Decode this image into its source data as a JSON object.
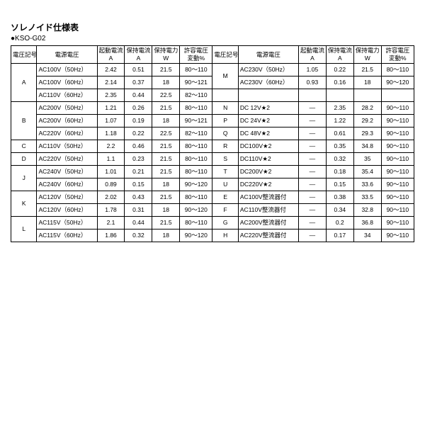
{
  "title": "ソレノイド仕様表",
  "subtitle": "●KSO-G02",
  "headers": {
    "code": "電圧記号",
    "voltage": "電源電圧",
    "start": "起動電流\nA",
    "hold": "保持電流\nA",
    "power": "保持電力\nW",
    "tol": "許容電圧\n変動%"
  },
  "left": [
    {
      "code": "A",
      "span": 3,
      "rows": [
        [
          "AC100V（50Hz）",
          "2.42",
          "0.51",
          "21.5",
          "80～110"
        ],
        [
          "AC100V（60Hz）",
          "2.14",
          "0.37",
          "18",
          "90～121"
        ],
        [
          "AC110V（60Hz）",
          "2.35",
          "0.44",
          "22.5",
          "82～110"
        ]
      ]
    },
    {
      "code": "B",
      "span": 3,
      "rows": [
        [
          "AC200V（50Hz）",
          "1.21",
          "0.26",
          "21.5",
          "80～110"
        ],
        [
          "AC200V（60Hz）",
          "1.07",
          "0.19",
          "18",
          "90～121"
        ],
        [
          "AC220V（60Hz）",
          "1.18",
          "0.22",
          "22.5",
          "82～110"
        ]
      ]
    },
    {
      "code": "C",
      "span": 1,
      "rows": [
        [
          "AC110V（50Hz）",
          "2.2",
          "0.46",
          "21.5",
          "80～110"
        ]
      ]
    },
    {
      "code": "D",
      "span": 1,
      "rows": [
        [
          "AC220V（50Hz）",
          "1.1",
          "0.23",
          "21.5",
          "80～110"
        ]
      ]
    },
    {
      "code": "J",
      "span": 2,
      "rows": [
        [
          "AC240V（50Hz）",
          "1.01",
          "0.21",
          "21.5",
          "80～110"
        ],
        [
          "AC240V（60Hz）",
          "0.89",
          "0.15",
          "18",
          "90～120"
        ]
      ]
    },
    {
      "code": "K",
      "span": 2,
      "rows": [
        [
          "AC120V（50Hz）",
          "2.02",
          "0.43",
          "21.5",
          "80～110"
        ],
        [
          "AC120V（60Hz）",
          "1.78",
          "0.31",
          "18",
          "90～120"
        ]
      ]
    },
    {
      "code": "L",
      "span": 2,
      "rows": [
        [
          "AC115V（50Hz）",
          "2.1",
          "0.44",
          "21.5",
          "80～110"
        ],
        [
          "AC115V（60Hz）",
          "1.86",
          "0.32",
          "18",
          "90～120"
        ]
      ]
    }
  ],
  "right": [
    {
      "code": "M",
      "span": 2,
      "rows": [
        [
          "AC230V（50Hz）",
          "1.05",
          "0.22",
          "21.5",
          "80～110"
        ],
        [
          "AC230V（60Hz）",
          "0.93",
          "0.16",
          "18",
          "90～120"
        ]
      ]
    },
    {
      "code": "",
      "span": 1,
      "rows": [
        [
          "",
          "",
          "",
          "",
          ""
        ]
      ]
    },
    {
      "code": "N",
      "span": 1,
      "rows": [
        [
          "DC 12V★2",
          "—",
          "2.35",
          "28.2",
          "90～110"
        ]
      ]
    },
    {
      "code": "P",
      "span": 1,
      "rows": [
        [
          "DC 24V★2",
          "—",
          "1.22",
          "29.2",
          "90～110"
        ]
      ]
    },
    {
      "code": "Q",
      "span": 1,
      "rows": [
        [
          "DC 48V★2",
          "—",
          "0.61",
          "29.3",
          "90～110"
        ]
      ]
    },
    {
      "code": "R",
      "span": 1,
      "rows": [
        [
          "DC100V★2",
          "—",
          "0.35",
          "34.8",
          "90～110"
        ]
      ]
    },
    {
      "code": "S",
      "span": 1,
      "rows": [
        [
          "DC110V★2",
          "—",
          "0.32",
          "35",
          "90～110"
        ]
      ]
    },
    {
      "code": "T",
      "span": 1,
      "rows": [
        [
          "DC200V★2",
          "—",
          "0.18",
          "35.4",
          "90～110"
        ]
      ]
    },
    {
      "code": "U",
      "span": 1,
      "rows": [
        [
          "DC220V★2",
          "—",
          "0.15",
          "33.6",
          "90～110"
        ]
      ]
    },
    {
      "code": "E",
      "span": 1,
      "rows": [
        [
          "AC100V整流器付",
          "—",
          "0.38",
          "33.5",
          "90～110"
        ]
      ]
    },
    {
      "code": "F",
      "span": 1,
      "rows": [
        [
          "AC110V整流器付",
          "—",
          "0.34",
          "32.8",
          "90～110"
        ]
      ]
    },
    {
      "code": "G",
      "span": 1,
      "rows": [
        [
          "AC200V整流器付",
          "—",
          "0.2",
          "36.8",
          "90～110"
        ]
      ]
    },
    {
      "code": "H",
      "span": 1,
      "rows": [
        [
          "AC220V整流器付",
          "—",
          "0.17",
          "34",
          "90～110"
        ]
      ]
    }
  ]
}
